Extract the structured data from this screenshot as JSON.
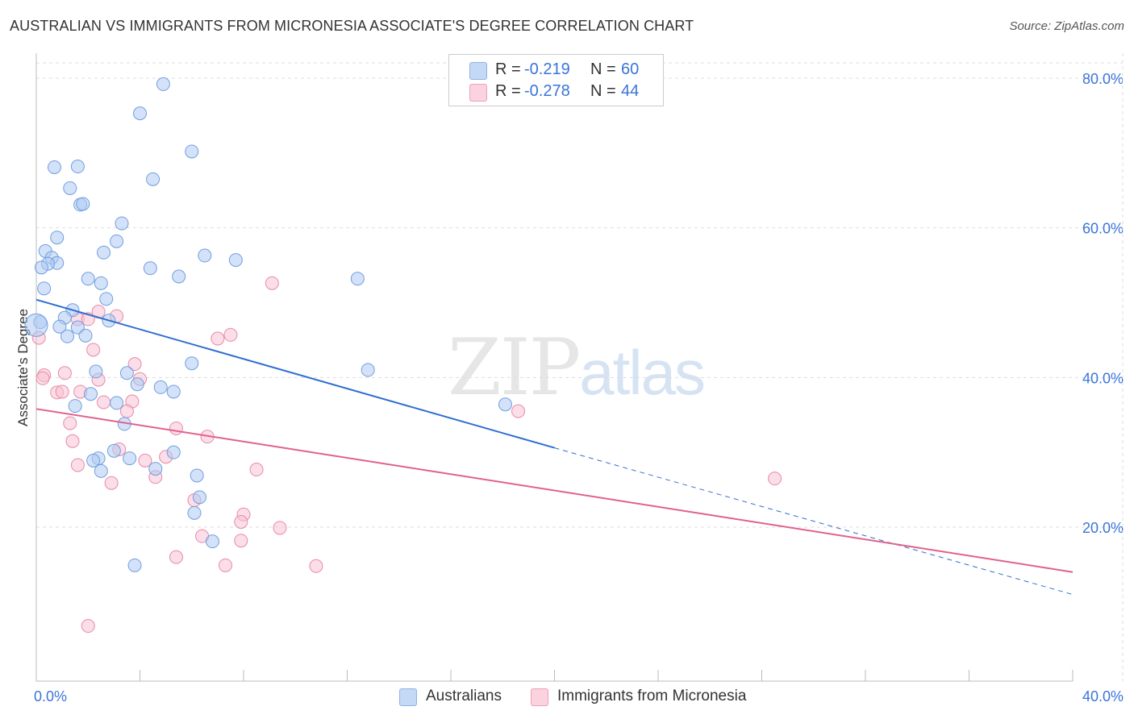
{
  "title": "AUSTRALIAN VS IMMIGRANTS FROM MICRONESIA ASSOCIATE'S DEGREE CORRELATION CHART",
  "source": "Source: ZipAtlas.com",
  "watermark": {
    "zip": "ZIP",
    "atlas": "atlas"
  },
  "legend": {
    "row1": {
      "r_label": "R =",
      "r_value": "-0.219",
      "n_label": "N =",
      "n_value": "60"
    },
    "row2": {
      "r_label": "R =",
      "r_value": "-0.278",
      "n_label": "N =",
      "n_value": "44"
    }
  },
  "bottom_legend": {
    "series1": "Australians",
    "series2": "Immigrants from Micronesia"
  },
  "colors": {
    "blue_fill": "#aecbf2",
    "blue_stroke": "#6f9fe0",
    "blue_line": "#2f6fd0",
    "pink_fill": "#f7c3d3",
    "pink_stroke": "#e88aa8",
    "pink_line": "#e0628c",
    "axis_text": "#3a74d8",
    "grid": "#dddddd"
  },
  "chart_data": {
    "type": "scatter",
    "title": "AUSTRALIAN VS IMMIGRANTS FROM MICRONESIA ASSOCIATE'S DEGREE CORRELATION CHART",
    "xlabel": "",
    "ylabel": "Associate's Degree",
    "xlim": [
      0,
      40
    ],
    "ylim": [
      0,
      80
    ],
    "x_tick_labels": [
      "0.0%",
      "40.0%"
    ],
    "y_ticks": [
      20,
      40,
      60,
      80
    ],
    "y_tick_labels": [
      "20.0%",
      "40.0%",
      "60.0%",
      "80.0%"
    ],
    "grid": true,
    "series": [
      {
        "name": "Australians",
        "r": -0.219,
        "n": 60,
        "trend": {
          "x0": 0,
          "y0": 50.4,
          "x1": 20,
          "y1": 30.6,
          "x_dashed_end": 40,
          "y_dashed_end": 11.0
        },
        "points": [
          [
            4.9,
            79.2
          ],
          [
            4.0,
            75.3
          ],
          [
            6.0,
            70.2
          ],
          [
            0.7,
            68.1
          ],
          [
            1.6,
            68.2
          ],
          [
            4.5,
            66.5
          ],
          [
            1.3,
            65.3
          ],
          [
            1.7,
            63.1
          ],
          [
            1.8,
            63.2
          ],
          [
            3.3,
            60.6
          ],
          [
            0.8,
            58.7
          ],
          [
            3.1,
            58.2
          ],
          [
            0.35,
            56.9
          ],
          [
            2.6,
            56.7
          ],
          [
            6.5,
            56.3
          ],
          [
            7.7,
            55.7
          ],
          [
            0.6,
            56.0
          ],
          [
            0.8,
            55.3
          ],
          [
            0.45,
            55.2
          ],
          [
            0.2,
            54.7
          ],
          [
            4.4,
            54.6
          ],
          [
            5.5,
            53.5
          ],
          [
            2.0,
            53.2
          ],
          [
            2.5,
            52.6
          ],
          [
            12.4,
            53.2
          ],
          [
            0.3,
            51.9
          ],
          [
            2.7,
            50.5
          ],
          [
            1.4,
            49.0
          ],
          [
            1.1,
            48.0
          ],
          [
            2.8,
            47.6
          ],
          [
            0.15,
            47.4
          ],
          [
            0.9,
            46.8
          ],
          [
            1.6,
            46.7
          ],
          [
            1.2,
            45.5
          ],
          [
            1.9,
            45.6
          ],
          [
            6.0,
            41.9
          ],
          [
            2.3,
            40.8
          ],
          [
            3.5,
            40.6
          ],
          [
            12.8,
            41.0
          ],
          [
            3.9,
            39.1
          ],
          [
            4.8,
            38.7
          ],
          [
            5.3,
            38.1
          ],
          [
            2.1,
            37.8
          ],
          [
            3.1,
            36.6
          ],
          [
            1.5,
            36.2
          ],
          [
            18.1,
            36.4
          ],
          [
            3.4,
            33.8
          ],
          [
            5.3,
            30.0
          ],
          [
            3.0,
            30.2
          ],
          [
            2.4,
            29.2
          ],
          [
            2.2,
            28.9
          ],
          [
            3.6,
            29.2
          ],
          [
            4.6,
            27.8
          ],
          [
            2.5,
            27.5
          ],
          [
            6.2,
            26.9
          ],
          [
            6.3,
            24.0
          ],
          [
            6.1,
            21.9
          ],
          [
            6.8,
            18.1
          ],
          [
            3.8,
            14.9
          ],
          [
            0.0,
            47.0
          ]
        ]
      },
      {
        "name": "Immigrants from Micronesia",
        "r": -0.278,
        "n": 44,
        "trend": {
          "x0": 0,
          "y0": 35.8,
          "x1": 40,
          "y1": 14.0
        },
        "points": [
          [
            9.1,
            52.6
          ],
          [
            2.4,
            48.8
          ],
          [
            3.1,
            48.2
          ],
          [
            1.6,
            47.8
          ],
          [
            2.0,
            47.8
          ],
          [
            0.1,
            45.3
          ],
          [
            7.5,
            45.7
          ],
          [
            7.0,
            45.2
          ],
          [
            2.2,
            43.7
          ],
          [
            3.8,
            41.8
          ],
          [
            0.3,
            40.3
          ],
          [
            1.1,
            40.6
          ],
          [
            0.25,
            39.9
          ],
          [
            2.4,
            39.7
          ],
          [
            4.0,
            39.8
          ],
          [
            1.7,
            38.1
          ],
          [
            0.8,
            38.0
          ],
          [
            1.0,
            38.1
          ],
          [
            2.6,
            36.7
          ],
          [
            3.7,
            36.8
          ],
          [
            3.5,
            35.5
          ],
          [
            18.6,
            35.5
          ],
          [
            1.3,
            33.9
          ],
          [
            5.4,
            33.2
          ],
          [
            6.6,
            32.1
          ],
          [
            1.4,
            31.5
          ],
          [
            3.2,
            30.4
          ],
          [
            5.0,
            29.4
          ],
          [
            4.2,
            28.9
          ],
          [
            1.6,
            28.3
          ],
          [
            8.5,
            27.7
          ],
          [
            4.6,
            26.7
          ],
          [
            28.5,
            26.5
          ],
          [
            2.9,
            25.9
          ],
          [
            6.1,
            23.6
          ],
          [
            8.0,
            21.7
          ],
          [
            7.9,
            20.7
          ],
          [
            9.4,
            19.9
          ],
          [
            6.4,
            18.8
          ],
          [
            7.9,
            18.2
          ],
          [
            5.4,
            16.0
          ],
          [
            7.3,
            14.9
          ],
          [
            10.8,
            14.8
          ],
          [
            2.0,
            6.8
          ]
        ]
      }
    ]
  }
}
